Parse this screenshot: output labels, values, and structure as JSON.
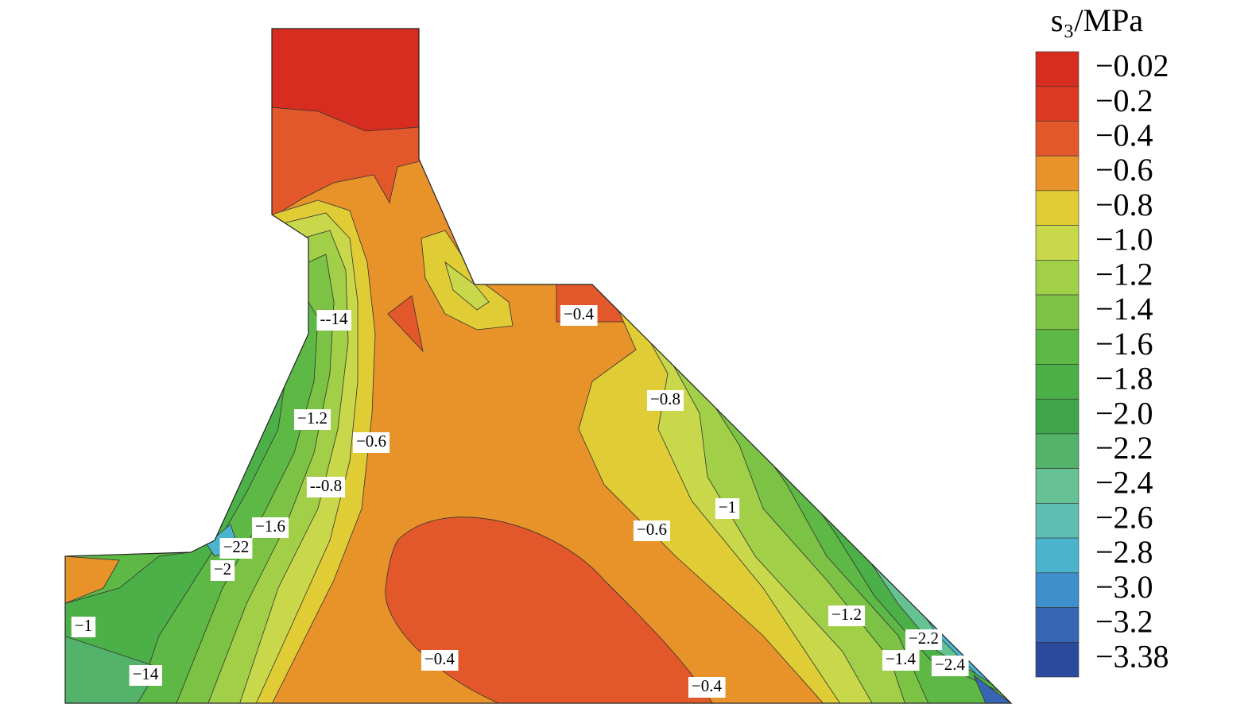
{
  "chart_data": {
    "type": "contour",
    "colorbar": {
      "title": "s₃/MPa",
      "ticks": [
        {
          "value": -0.02,
          "label": "−0.02"
        },
        {
          "value": -0.2,
          "label": "−0.2"
        },
        {
          "value": -0.4,
          "label": "−0.4"
        },
        {
          "value": -0.6,
          "label": "−0.6"
        },
        {
          "value": -0.8,
          "label": "−0.8"
        },
        {
          "value": -1.0,
          "label": "−1.0"
        },
        {
          "value": -1.2,
          "label": "−1.2"
        },
        {
          "value": -1.4,
          "label": "−1.4"
        },
        {
          "value": -1.6,
          "label": "−1.6"
        },
        {
          "value": -1.8,
          "label": "−1.8"
        },
        {
          "value": -2.0,
          "label": "−2.0"
        },
        {
          "value": -2.2,
          "label": "−2.2"
        },
        {
          "value": -2.4,
          "label": "−2.4"
        },
        {
          "value": -2.6,
          "label": "−2.6"
        },
        {
          "value": -2.8,
          "label": "−2.8"
        },
        {
          "value": -3.0,
          "label": "−3.0"
        },
        {
          "value": -3.2,
          "label": "−3.2"
        },
        {
          "value": -3.38,
          "label": "−3.38"
        }
      ],
      "colors": [
        "#d62d20",
        "#dc3a22",
        "#e2582a",
        "#e8922a",
        "#e0cc35",
        "#c8d84a",
        "#a2cf48",
        "#7cc245",
        "#5db845",
        "#4cb048",
        "#3fa649",
        "#53b36b",
        "#66c193",
        "#5fbdb3",
        "#4ab4cc",
        "#3e8fcc",
        "#3665b3",
        "#2b4a9c"
      ]
    },
    "contour_labels": [
      "--14",
      "−0.4",
      "−0.8",
      "−1.2",
      "−0.6",
      "--0.8",
      "−1",
      "−0.6",
      "−1.6",
      "−22",
      "−2",
      "−1",
      "−1.2",
      "−2.2",
      "−1.4",
      "−2.4",
      "−0.4",
      "−0.4",
      "−14"
    ]
  }
}
